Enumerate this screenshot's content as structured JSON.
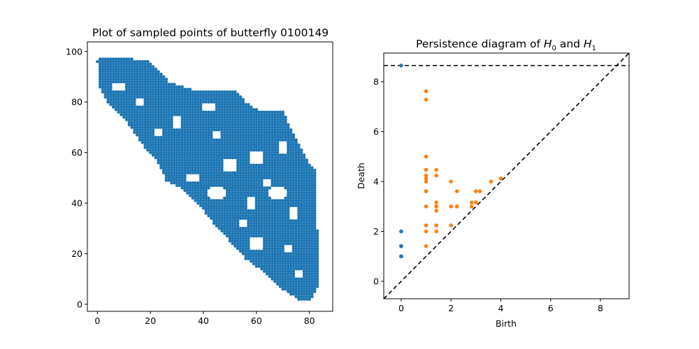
{
  "figure": {
    "background": "#ffffff"
  },
  "chart_data": [
    {
      "type": "scatter",
      "title": "Plot of sampled points of butterfly 0100149",
      "xlabel": "",
      "ylabel": "",
      "xlim": [
        -3.8,
        88.8
      ],
      "ylim": [
        -2.8,
        103.8
      ],
      "grid": false,
      "xticks": [
        0,
        20,
        40,
        60,
        80
      ],
      "yticks": [
        0,
        20,
        40,
        60,
        80,
        100
      ],
      "xtick_labels": [
        "0",
        "20",
        "40",
        "60",
        "80"
      ],
      "ytick_labels": [
        "0",
        "20",
        "40",
        "60",
        "80",
        "100"
      ],
      "series": [
        {
          "color": "#1f77b4",
          "description_points_region": {
            "boundary_polygon": [
              [
                0,
                96
              ],
              [
                1,
                98
              ],
              [
                8,
                98
              ],
              [
                20,
                96
              ],
              [
                27,
                88
              ],
              [
                36,
                85
              ],
              [
                52,
                85
              ],
              [
                56,
                80
              ],
              [
                62,
                76
              ],
              [
                70,
                77
              ],
              [
                72,
                72
              ],
              [
                76,
                64
              ],
              [
                80,
                56
              ],
              [
                83,
                52
              ],
              [
                83,
                30
              ],
              [
                84,
                12
              ],
              [
                83,
                6
              ],
              [
                80,
                1
              ],
              [
                76,
                2
              ],
              [
                70,
                6
              ],
              [
                64,
                12
              ],
              [
                56,
                18
              ],
              [
                50,
                25
              ],
              [
                44,
                32
              ],
              [
                38,
                40
              ],
              [
                32,
                46
              ],
              [
                26,
                49
              ],
              [
                24,
                54
              ],
              [
                22,
                58
              ],
              [
                18,
                62
              ],
              [
                14,
                68
              ],
              [
                10,
                74
              ],
              [
                4,
                80
              ],
              [
                1,
                86
              ]
            ],
            "holes": [
              [
                8,
                86,
                3,
                2
              ],
              [
                16,
                80,
                2,
                2
              ],
              [
                30,
                72,
                2,
                3
              ],
              [
                45,
                67,
                2,
                2
              ],
              [
                50,
                55,
                3,
                3
              ],
              [
                60,
                58,
                3,
                3
              ],
              [
                70,
                62,
                2,
                3
              ],
              [
                68,
                44,
                4,
                3
              ],
              [
                58,
                40,
                2,
                3
              ],
              [
                45,
                44,
                4,
                3
              ],
              [
                36,
                50,
                3,
                2
              ],
              [
                74,
                36,
                2,
                3
              ],
              [
                60,
                24,
                3,
                3
              ],
              [
                72,
                22,
                2,
                2
              ],
              [
                76,
                12,
                2,
                2
              ],
              [
                55,
                32,
                2,
                2
              ],
              [
                64,
                48,
                2,
                2
              ],
              [
                23,
                68,
                2,
                2
              ],
              [
                42,
                78,
                3,
                2
              ]
            ],
            "step": 1
          }
        }
      ]
    },
    {
      "type": "scatter",
      "title_prefix": "Persistence diagram of ",
      "title_h0_base": "H",
      "title_h0_sub": "0",
      "title_and": " and ",
      "title_h1_base": "H",
      "title_h1_sub": "1",
      "xlabel": "Birth",
      "ylabel": "Death",
      "xlim": [
        -0.7,
        9.15
      ],
      "ylim": [
        -0.7,
        9.15
      ],
      "grid": false,
      "xticks": [
        0,
        2,
        4,
        6,
        8
      ],
      "yticks": [
        0,
        2,
        4,
        6,
        8
      ],
      "xtick_labels": [
        "0",
        "2",
        "4",
        "6",
        "8"
      ],
      "ytick_labels": [
        "0",
        "2",
        "4",
        "6",
        "8"
      ],
      "infinity_line_y": 8.65,
      "diagonal": true,
      "series": [
        {
          "name": "H0",
          "color": "#1f77b4",
          "points": [
            [
              0,
              8.65
            ],
            [
              0,
              2.0
            ],
            [
              0,
              1.41
            ],
            [
              0,
              1.41
            ],
            [
              0,
              1.0
            ],
            [
              0,
              1.0
            ],
            [
              0,
              1.0
            ]
          ]
        },
        {
          "name": "H1",
          "color": "#ff7f0e",
          "points": [
            [
              1.0,
              7.62
            ],
            [
              1.0,
              7.28
            ],
            [
              1.0,
              5.0
            ],
            [
              1.0,
              4.47
            ],
            [
              1.0,
              4.24
            ],
            [
              1.0,
              4.12
            ],
            [
              1.0,
              4.0
            ],
            [
              1.0,
              3.61
            ],
            [
              1.0,
              3.0
            ],
            [
              1.0,
              2.24
            ],
            [
              1.0,
              2.0
            ],
            [
              1.0,
              1.41
            ],
            [
              1.41,
              4.47
            ],
            [
              1.41,
              4.24
            ],
            [
              1.41,
              3.16
            ],
            [
              1.41,
              3.0
            ],
            [
              1.41,
              2.83
            ],
            [
              1.41,
              2.24
            ],
            [
              1.41,
              2.0
            ],
            [
              2.0,
              4.0
            ],
            [
              2.0,
              3.0
            ],
            [
              2.0,
              2.24
            ],
            [
              2.24,
              3.61
            ],
            [
              2.24,
              3.0
            ],
            [
              2.83,
              3.16
            ],
            [
              2.83,
              3.0
            ],
            [
              3.0,
              3.61
            ],
            [
              3.0,
              3.16
            ],
            [
              3.16,
              3.61
            ],
            [
              3.61,
              4.0
            ],
            [
              4.0,
              4.12
            ]
          ]
        }
      ]
    }
  ]
}
